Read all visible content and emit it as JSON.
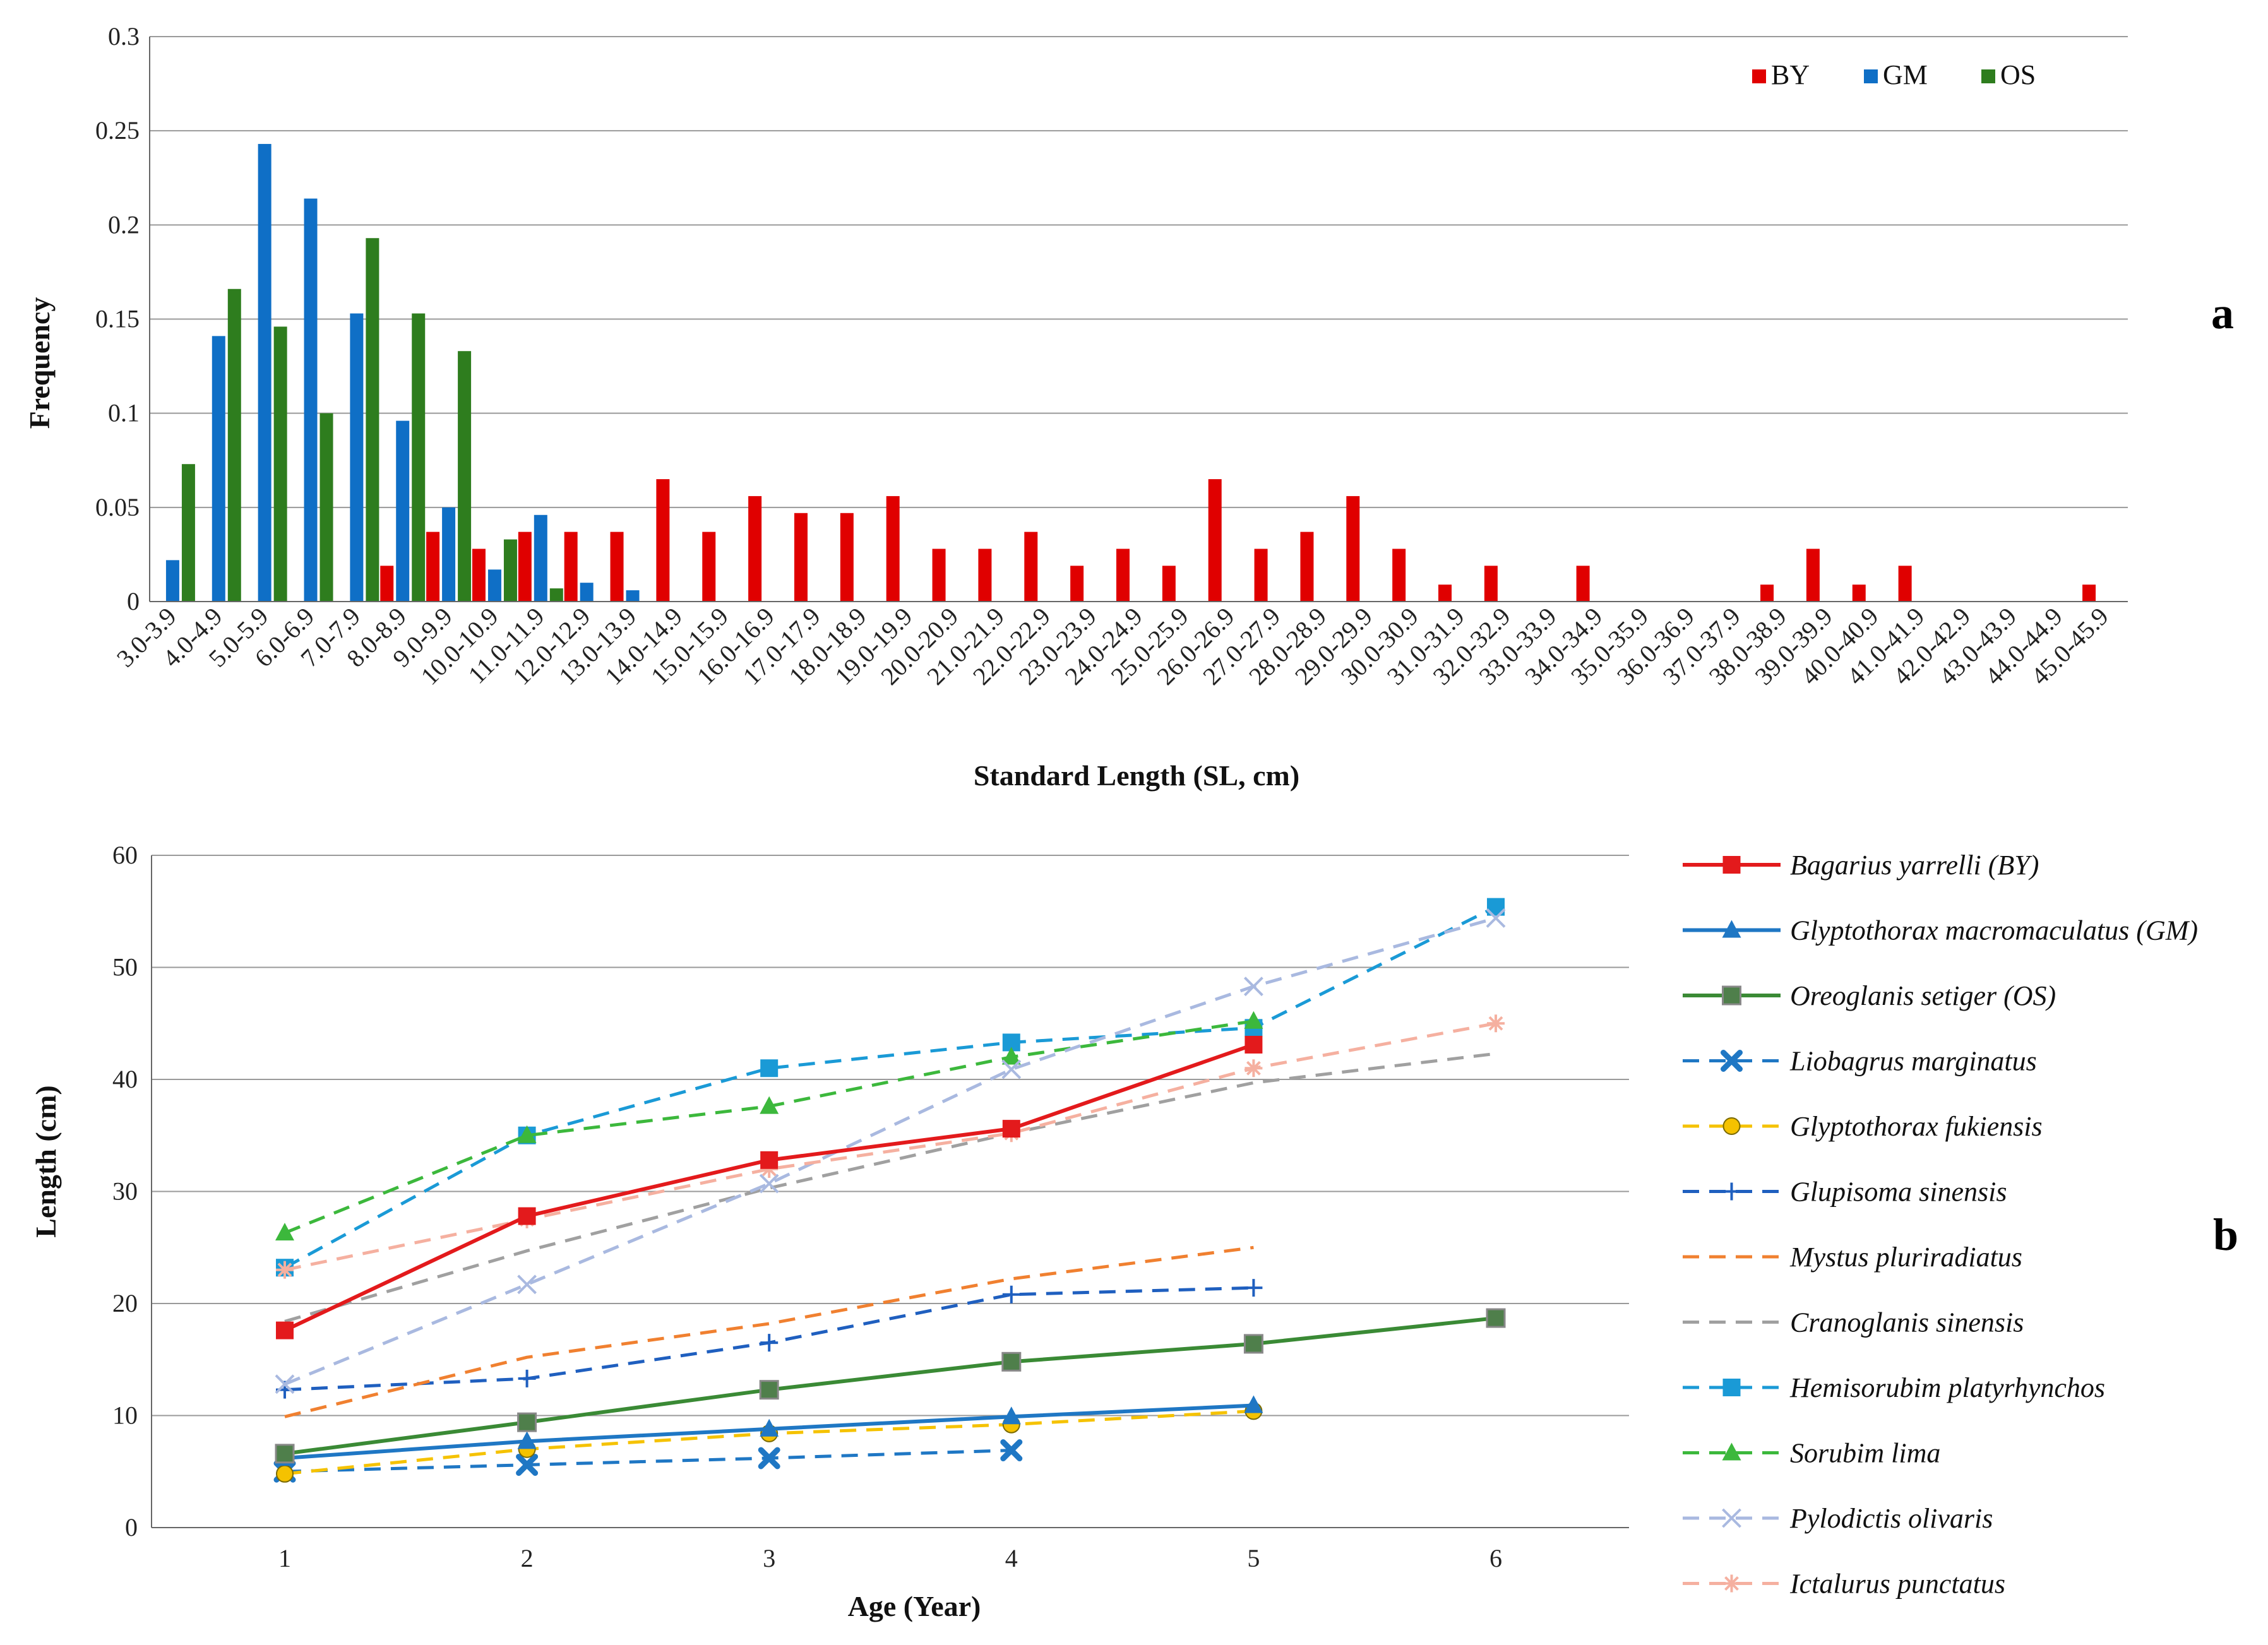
{
  "chart_data": [
    {
      "panel": "a",
      "type": "bar",
      "xlabel": "Standard Length (SL, cm)",
      "ylabel": "Frequency",
      "ylim": [
        0,
        0.3
      ],
      "yticks": [
        "0",
        "0.05",
        "0.1",
        "0.15",
        "0.2",
        "0.25",
        "0.3"
      ],
      "grid": true,
      "legend_position": "top-right",
      "categories": [
        "3.0-3.9",
        "4.0-4.9",
        "5.0-5.9",
        "6.0-6.9",
        "7.0-7.9",
        "8.0-8.9",
        "9.0-9.9",
        "10.0-10.9",
        "11.0-11.9",
        "12.0-12.9",
        "13.0-13.9",
        "14.0-14.9",
        "15.0-15.9",
        "16.0-16.9",
        "17.0-17.9",
        "18.0-18.9",
        "19.0-19.9",
        "20.0-20.9",
        "21.0-21.9",
        "22.0-22.9",
        "23.0-23.9",
        "24.0-24.9",
        "25.0-25.9",
        "26.0-26.9",
        "27.0-27.9",
        "28.0-28.9",
        "29.0-29.9",
        "30.0-30.9",
        "31.0-31.9",
        "32.0-32.9",
        "33.0-33.9",
        "34.0-34.9",
        "35.0-35.9",
        "36.0-36.9",
        "37.0-37.9",
        "38.0-38.9",
        "39.0-39.9",
        "40.0-40.9",
        "41.0-41.9",
        "42.0-42.9",
        "43.0-43.9",
        "44.0-44.9",
        "45.0-45.9"
      ],
      "series": [
        {
          "name": "BY",
          "color": "#e00000",
          "values": [
            0,
            0,
            0,
            0,
            0,
            0.019,
            0.037,
            0.028,
            0.037,
            0.037,
            0.037,
            0.065,
            0.037,
            0.056,
            0.047,
            0.047,
            0.056,
            0.028,
            0.028,
            0.037,
            0.019,
            0.028,
            0.019,
            0.065,
            0.028,
            0.037,
            0.056,
            0.028,
            0.009,
            0.019,
            0,
            0.019,
            0,
            0,
            0,
            0.009,
            0.028,
            0.009,
            0.019,
            0,
            0,
            0,
            0.009
          ]
        },
        {
          "name": "GM",
          "color": "#0f6fc6",
          "values": [
            0.022,
            0.141,
            0.243,
            0.214,
            0.153,
            0.096,
            0.05,
            0.017,
            0.046,
            0.01,
            0.006,
            0,
            0,
            0,
            0,
            0,
            0,
            0,
            0,
            0,
            0,
            0,
            0,
            0,
            0,
            0,
            0,
            0,
            0,
            0,
            0,
            0,
            0,
            0,
            0,
            0,
            0,
            0,
            0,
            0,
            0,
            0,
            0
          ]
        },
        {
          "name": "OS",
          "color": "#2e7d1e",
          "values": [
            0.073,
            0.166,
            0.146,
            0.1,
            0.193,
            0.153,
            0.133,
            0.033,
            0.007,
            0,
            0,
            0,
            0,
            0,
            0,
            0,
            0,
            0,
            0,
            0,
            0,
            0,
            0,
            0,
            0,
            0,
            0,
            0,
            0,
            0,
            0,
            0,
            0,
            0,
            0,
            0,
            0,
            0,
            0,
            0,
            0,
            0,
            0
          ]
        }
      ]
    },
    {
      "panel": "b",
      "type": "line",
      "xlabel": "Age (Year)",
      "ylabel": "Length (cm)",
      "xlim": [
        0.45,
        6.55
      ],
      "ylim": [
        0,
        60
      ],
      "xticks": [
        "1",
        "2",
        "3",
        "4",
        "5",
        "6"
      ],
      "yticks": [
        "0",
        "10",
        "20",
        "30",
        "40",
        "50",
        "60"
      ],
      "grid": true,
      "legend_position": "right",
      "series": [
        {
          "name": "Bagarius yarrelli (BY)",
          "color": "#e31a1c",
          "dash": "solid",
          "marker": "square",
          "x": [
            1,
            2,
            3,
            4,
            5
          ],
          "y": [
            17.6,
            27.8,
            32.8,
            35.6,
            43.1
          ]
        },
        {
          "name": "Glyptothorax macromaculatus (GM)",
          "color": "#1f77c4",
          "dash": "solid",
          "marker": "triangle",
          "x": [
            1,
            2,
            3,
            4,
            5
          ],
          "y": [
            6.2,
            7.7,
            8.8,
            9.9,
            10.9
          ]
        },
        {
          "name": "Oreoglanis setiger (OS)",
          "color": "#3a8a35",
          "dash": "solid",
          "marker": "square-dark",
          "x": [
            1,
            2,
            3,
            4,
            5,
            6
          ],
          "y": [
            6.6,
            9.4,
            12.3,
            14.8,
            16.4,
            18.7
          ]
        },
        {
          "name": "Liobagrus marginatus",
          "color": "#1f77c4",
          "dash": "dashed",
          "marker": "x-bold",
          "x": [
            1,
            2,
            3,
            4
          ],
          "y": [
            5.0,
            5.6,
            6.2,
            6.9
          ]
        },
        {
          "name": "Glyptothorax fukiensis",
          "color": "#f5c200",
          "dash": "dashed",
          "marker": "circle",
          "x": [
            1,
            2,
            3,
            4,
            5
          ],
          "y": [
            4.8,
            7.0,
            8.4,
            9.2,
            10.4
          ]
        },
        {
          "name": "Glupisoma sinensis",
          "color": "#1f5fbf",
          "dash": "dashed",
          "marker": "plus",
          "x": [
            1,
            2,
            3,
            4,
            5
          ],
          "y": [
            12.3,
            13.3,
            16.5,
            20.8,
            21.4
          ]
        },
        {
          "name": "Mystus pluriradiatus",
          "color": "#f08030",
          "dash": "dashed",
          "marker": "none",
          "x": [
            1,
            2,
            3,
            4,
            5
          ],
          "y": [
            9.9,
            15.2,
            18.2,
            22.2,
            25.0
          ]
        },
        {
          "name": "Cranoglanis sinensis",
          "color": "#a0a0a0",
          "dash": "dashed",
          "marker": "none",
          "x": [
            1,
            2,
            3,
            4,
            5,
            6
          ],
          "y": [
            18.4,
            24.7,
            30.3,
            35.2,
            39.7,
            42.3
          ]
        },
        {
          "name": "Hemisorubim platyrhynchos",
          "color": "#1a9ad6",
          "dash": "dashed",
          "marker": "square",
          "x": [
            1,
            2,
            3,
            4,
            5,
            6
          ],
          "y": [
            23.2,
            35.0,
            41.0,
            43.3,
            44.6,
            55.4
          ]
        },
        {
          "name": "Sorubim lima",
          "color": "#3cb83c",
          "dash": "dashed",
          "marker": "triangle",
          "x": [
            1,
            2,
            3,
            4,
            5
          ],
          "y": [
            26.3,
            35.0,
            37.6,
            42.0,
            45.2
          ]
        },
        {
          "name": "Pylodictis olivaris",
          "color": "#a9b9e0",
          "dash": "dashed",
          "marker": "x",
          "x": [
            1,
            2,
            3,
            4,
            5,
            6
          ],
          "y": [
            12.8,
            21.7,
            30.7,
            40.9,
            48.3,
            54.4
          ]
        },
        {
          "name": "Ictalurus punctatus",
          "color": "#f5b0a0",
          "dash": "dashed",
          "marker": "asterisk",
          "x": [
            1,
            2,
            3,
            4,
            5,
            6
          ],
          "y": [
            23.0,
            27.5,
            32.0,
            35.2,
            41.0,
            45.0
          ]
        }
      ]
    }
  ],
  "labels": {
    "panel_a": "a",
    "panel_b": "b"
  }
}
